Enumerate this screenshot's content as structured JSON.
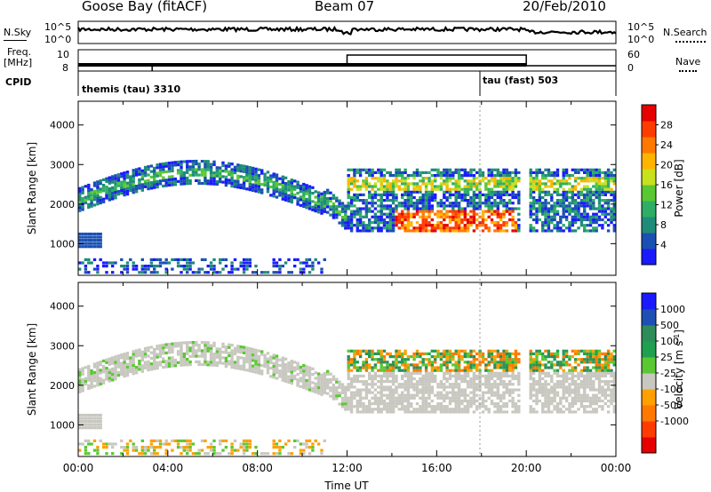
{
  "header": {
    "station": "Goose Bay (fitACF)",
    "beam": "Beam 07",
    "date": "20/Feb/2010"
  },
  "top_panels": {
    "nsky_label": "N.Sky",
    "nsky_ticks": [
      "10^5",
      "10^0"
    ],
    "nsearch_label": "N.Search",
    "nsearch_ticks": [
      "10^5",
      "10^0"
    ],
    "freq_label_1": "Freq.",
    "freq_label_2": "[MHz]",
    "freq_ticks": [
      "10",
      "8"
    ],
    "nave_label": "Nave",
    "nave_ticks": [
      "60",
      "0"
    ],
    "cpid_label": "CPID",
    "cpid_1": "themis (tau) 3310",
    "cpid_2": "tau (fast) 503"
  },
  "chart_data": [
    {
      "type": "heatmap",
      "title": "",
      "ylabel": "Slant Range [km]",
      "ylim": [
        200,
        4600
      ],
      "yticks": [
        "1000",
        "2000",
        "3000",
        "4000"
      ],
      "colorbar_label": "Power [dB]",
      "colorbar_ticks": [
        "4",
        "8",
        "12",
        "16",
        "20",
        "24",
        "28"
      ],
      "colorbar_range": [
        0,
        32
      ],
      "colors": [
        "#1a1aff",
        "#1a50b4",
        "#1e8c78",
        "#2dae64",
        "#5ac832",
        "#c8e11e",
        "#ffb400",
        "#ff7800",
        "#ff3c00",
        "#e60000"
      ]
    },
    {
      "type": "heatmap",
      "title": "",
      "ylabel": "Slant Range [km]",
      "xlabel": "Time UT",
      "ylim": [
        200,
        4600
      ],
      "yticks": [
        "1000",
        "2000",
        "3000",
        "4000"
      ],
      "xticks": [
        "00:00",
        "04:00",
        "08:00",
        "12:00",
        "16:00",
        "20:00",
        "00:00"
      ],
      "colorbar_label": "Velocity [m s",
      "colorbar_label_sup": "-1",
      "colorbar_label_end": "]",
      "colorbar_ticks": [
        "1000",
        "500",
        "100",
        "25",
        "-25",
        "-100",
        "-500",
        "-1000"
      ],
      "colors": [
        "#1a1aff",
        "#1e50b4",
        "#2d8c5a",
        "#1ea050",
        "#5ac832",
        "#c8c8c0",
        "#ffa000",
        "#ff7800",
        "#ff3c00",
        "#e60000"
      ]
    }
  ]
}
